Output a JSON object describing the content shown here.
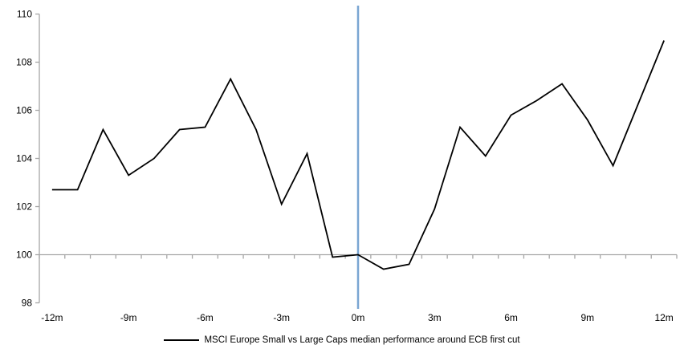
{
  "chart_data": {
    "type": "line",
    "title": "",
    "x_months": [
      -12,
      -11,
      -10,
      -9,
      -8,
      -7,
      -6,
      -5,
      -4,
      -3,
      -2,
      -1,
      0,
      1,
      2,
      3,
      4,
      5,
      6,
      7,
      8,
      9,
      10,
      11,
      12
    ],
    "x_tick_months": [
      -12,
      -9,
      -6,
      -3,
      0,
      3,
      6,
      9,
      12
    ],
    "x_tick_labels": [
      "-12m",
      "-9m",
      "-6m",
      "-3m",
      "0m",
      "3m",
      "6m",
      "9m",
      "12m"
    ],
    "y_ticks": [
      98,
      100,
      102,
      104,
      106,
      108,
      110
    ],
    "ylim": [
      98,
      110
    ],
    "baseline_value": 100,
    "grid": "off",
    "legend_position": "bottom",
    "axis_color": "#A6A6A6",
    "event_line": {
      "x_month": 0,
      "color": "#7AA6D2"
    },
    "series": [
      {
        "name": "MSCI Europe Small vs Large Caps median performance around ECB first cut",
        "color": "#000000",
        "values": [
          102.7,
          102.7,
          105.2,
          103.3,
          104.0,
          105.2,
          105.3,
          107.3,
          105.2,
          102.1,
          104.2,
          99.9,
          100.0,
          99.4,
          99.6,
          101.9,
          105.3,
          104.1,
          105.8,
          106.4,
          107.1,
          105.6,
          103.7,
          106.3,
          108.9
        ]
      }
    ]
  },
  "legend": {
    "label": "MSCI Europe Small vs Large Caps median performance around ECB first cut"
  }
}
